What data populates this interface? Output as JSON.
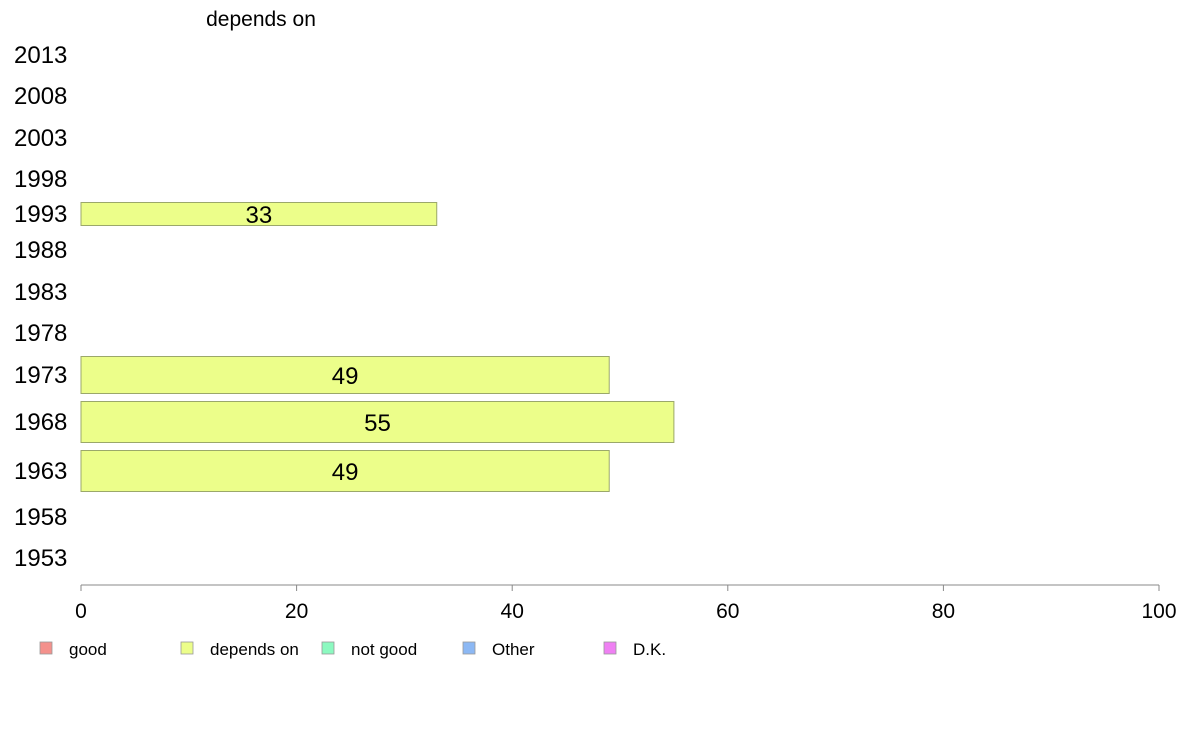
{
  "chart_data": {
    "type": "bar",
    "orientation": "horizontal",
    "title": "depends on",
    "xlabel": "",
    "ylabel": "",
    "xlim": [
      0,
      100
    ],
    "x_ticks": [
      0,
      20,
      40,
      60,
      80,
      100
    ],
    "categories": [
      "2013",
      "2008",
      "2003",
      "1998",
      "1993",
      "1988",
      "1983",
      "1978",
      "1973",
      "1968",
      "1963",
      "1958",
      "1953"
    ],
    "series": [
      {
        "name": "depends on",
        "values": [
          null,
          null,
          null,
          null,
          33,
          null,
          null,
          null,
          49,
          55,
          49,
          null,
          null
        ]
      }
    ],
    "grid": false,
    "legend_position": "bottom",
    "legend": [
      {
        "label": "good",
        "color": "#f4918c"
      },
      {
        "label": "depends on",
        "color": "#ecfe8a"
      },
      {
        "label": "not good",
        "color": "#8cf9c0"
      },
      {
        "label": "Other",
        "color": "#8cb8f4"
      },
      {
        "label": "D.K.",
        "color": "#ef80f3"
      }
    ],
    "bar_color": "#ecfe8a",
    "bar_stroke": "#9ba86a"
  }
}
